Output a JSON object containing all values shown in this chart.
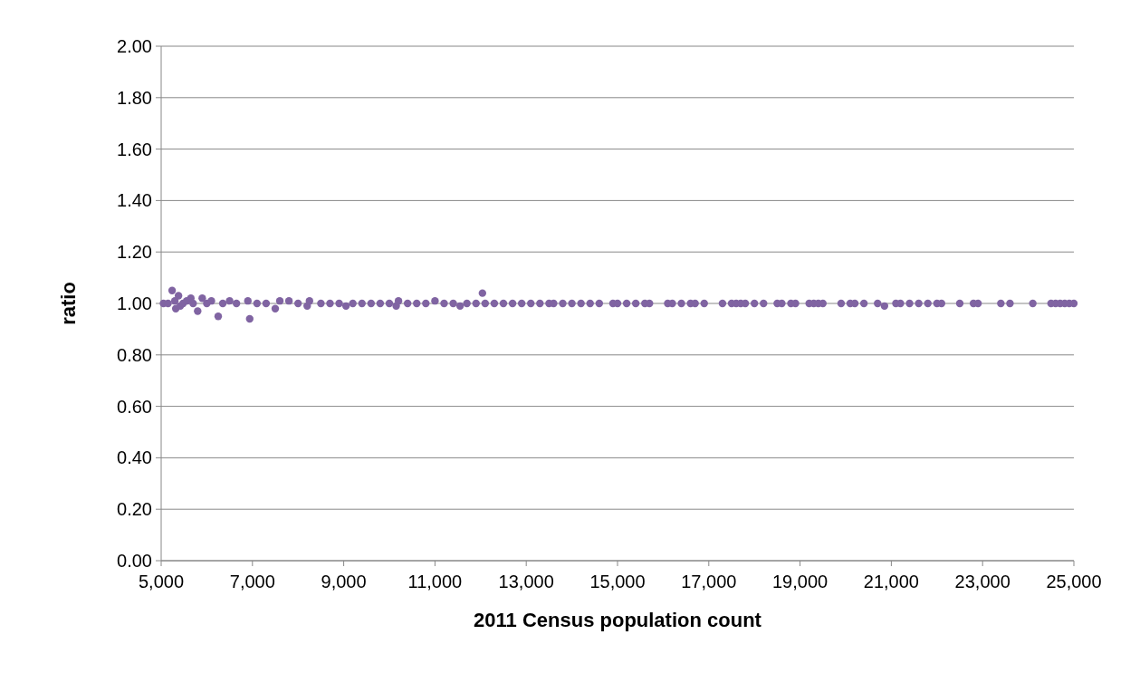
{
  "chart_data": {
    "type": "scatter",
    "xlabel": "2011 Census population count",
    "ylabel": "ratio",
    "xlim": [
      5000,
      25000
    ],
    "xticks": [
      {
        "value": 5000,
        "label": "5,000"
      },
      {
        "value": 7000,
        "label": "7,000"
      },
      {
        "value": 9000,
        "label": "9,000"
      },
      {
        "value": 11000,
        "label": "11,000"
      },
      {
        "value": 13000,
        "label": "13,000"
      },
      {
        "value": 15000,
        "label": "15,000"
      },
      {
        "value": 17000,
        "label": "17,000"
      },
      {
        "value": 19000,
        "label": "19,000"
      },
      {
        "value": 21000,
        "label": "21,000"
      },
      {
        "value": 23000,
        "label": "23,000"
      },
      {
        "value": 25000,
        "label": "25,000"
      }
    ],
    "ylim": [
      0,
      2
    ],
    "yticks": [
      {
        "value": 0,
        "label": "0.00"
      },
      {
        "value": 0.2,
        "label": "0.20"
      },
      {
        "value": 0.4,
        "label": "0.40"
      },
      {
        "value": 0.6,
        "label": "0.60"
      },
      {
        "value": 0.8,
        "label": "0.80"
      },
      {
        "value": 1,
        "label": "1.00"
      },
      {
        "value": 1.2,
        "label": "1.20"
      },
      {
        "value": 1.4,
        "label": "1.40"
      },
      {
        "value": 1.6,
        "label": "1.60"
      },
      {
        "value": 1.8,
        "label": "1.80"
      },
      {
        "value": 2,
        "label": "2.00"
      }
    ],
    "grid": "y",
    "marker": "circle",
    "series": [
      {
        "color": "#8064a2",
        "x": [
          5050,
          5150,
          5240,
          5300,
          5320,
          5380,
          5420,
          5480,
          5560,
          5650,
          5700,
          5800,
          5900,
          6000,
          6100,
          6250,
          6350,
          6500,
          6650,
          6900,
          6940,
          7100,
          7300,
          7500,
          7600,
          7800,
          8000,
          8200,
          8250,
          8500,
          8700,
          8900,
          9050,
          9200,
          9400,
          9600,
          9800,
          10000,
          10150,
          10200,
          10400,
          10600,
          10800,
          11000,
          11200,
          11400,
          11550,
          11700,
          11900,
          12040,
          12100,
          12300,
          12500,
          12700,
          12900,
          13100,
          13300,
          13500,
          13600,
          13800,
          14000,
          14200,
          14400,
          14600,
          14900,
          15000,
          15200,
          15400,
          15600,
          15700,
          16100,
          16200,
          16400,
          16600,
          16700,
          16900,
          17300,
          17500,
          17600,
          17700,
          17800,
          18000,
          18200,
          18500,
          18600,
          18800,
          18900,
          19200,
          19300,
          19400,
          19500,
          19900,
          20100,
          20200,
          20400,
          20700,
          20850,
          21100,
          21200,
          21400,
          21600,
          21800,
          22000,
          22100,
          22500,
          22800,
          22900,
          23400,
          23600,
          24100,
          24500,
          24600,
          24700,
          24800,
          24900,
          25000
        ],
        "values": [
          1.0,
          1.0,
          1.05,
          1.01,
          0.98,
          1.03,
          0.99,
          1.0,
          1.01,
          1.02,
          1.0,
          0.97,
          1.02,
          1.0,
          1.01,
          0.95,
          1.0,
          1.01,
          1.0,
          1.01,
          0.94,
          1.0,
          1.0,
          0.98,
          1.01,
          1.01,
          1.0,
          0.99,
          1.01,
          1.0,
          1.0,
          1.0,
          0.99,
          1.0,
          1.0,
          1.0,
          1.0,
          1.0,
          0.99,
          1.01,
          1.0,
          1.0,
          1.0,
          1.01,
          1.0,
          1.0,
          0.99,
          1.0,
          1.0,
          1.04,
          1.0,
          1.0,
          1.0,
          1.0,
          1.0,
          1.0,
          1.0,
          1.0,
          1.0,
          1.0,
          1.0,
          1.0,
          1.0,
          1.0,
          1.0,
          1.0,
          1.0,
          1.0,
          1.0,
          1.0,
          1.0,
          1.0,
          1.0,
          1.0,
          1.0,
          1.0,
          1.0,
          1.0,
          1.0,
          1.0,
          1.0,
          1.0,
          1.0,
          1.0,
          1.0,
          1.0,
          1.0,
          1.0,
          1.0,
          1.0,
          1.0,
          1.0,
          1.0,
          1.0,
          1.0,
          1.0,
          0.99,
          1.0,
          1.0,
          1.0,
          1.0,
          1.0,
          1.0,
          1.0,
          1.0,
          1.0,
          1.0,
          1.0,
          1.0,
          1.0,
          1.0,
          1.0,
          1.0,
          1.0,
          1.0,
          1.0
        ]
      }
    ]
  }
}
